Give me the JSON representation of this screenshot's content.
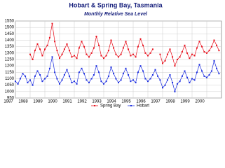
{
  "chart_data": {
    "type": "line",
    "title": "Hobart & Spring Bay, Tasmania",
    "subtitle": "Monthly Relative Sea Level",
    "x": [
      1987.0,
      1987.17,
      1987.33,
      1987.5,
      1987.67,
      1987.83,
      1988.0,
      1988.17,
      1988.33,
      1988.5,
      1988.67,
      1988.83,
      1989.0,
      1989.17,
      1989.33,
      1989.5,
      1989.67,
      1989.83,
      1990.0,
      1990.17,
      1990.33,
      1990.5,
      1990.67,
      1990.83,
      1991.0,
      1991.17,
      1991.33,
      1991.5,
      1991.67,
      1991.83,
      1992.0,
      1992.17,
      1992.33,
      1992.5,
      1992.67,
      1992.83,
      1993.0,
      1993.17,
      1993.33,
      1993.5,
      1993.67,
      1993.83,
      1994.0,
      1994.17,
      1994.33,
      1994.5,
      1994.67,
      1994.83,
      1995.0,
      1995.17,
      1995.33,
      1995.5,
      1995.67,
      1995.83,
      1996.0,
      1996.17,
      1996.33,
      1996.5,
      1996.67,
      1996.83,
      1997.0,
      1997.17,
      1997.33,
      1997.5,
      1997.67,
      1997.83,
      1998.0,
      1998.17,
      1998.33,
      1998.5,
      1998.67,
      1998.83,
      1999.0,
      1999.17,
      1999.33,
      1999.5,
      1999.67,
      1999.83,
      2000.0,
      2000.17,
      2000.33,
      2000.5,
      2000.67,
      2000.83
    ],
    "series": [
      {
        "name": "Spring Bay",
        "color": "#e8101c",
        "values": [
          null,
          null,
          null,
          null,
          null,
          null,
          1290,
          1250,
          1320,
          1370,
          1330,
          1280,
          1330,
          1360,
          1420,
          1530,
          1390,
          1320,
          1260,
          1290,
          1330,
          1370,
          1320,
          1270,
          1280,
          1260,
          1340,
          1390,
          1350,
          1290,
          1270,
          1300,
          1340,
          1430,
          1360,
          1280,
          1260,
          1280,
          1320,
          1400,
          1340,
          1290,
          1270,
          1290,
          1340,
          1390,
          1330,
          1280,
          1290,
          1270,
          1350,
          1410,
          1360,
          1300,
          1280,
          1300,
          1330,
          null,
          null,
          1290,
          1220,
          1240,
          1290,
          1330,
          1270,
          1200,
          1250,
          1270,
          1310,
          1360,
          1300,
          1260,
          1290,
          1280,
          1340,
          1390,
          1350,
          1310,
          1300,
          1320,
          1350,
          1400,
          1360,
          1320
        ]
      },
      {
        "name": "Hobart",
        "color": "#1c2ee0",
        "values": [
          1080,
          1060,
          1100,
          1140,
          1120,
          1070,
          1090,
          1050,
          1120,
          1160,
          1130,
          1080,
          1100,
          1120,
          1180,
          1270,
          1150,
          1100,
          1060,
          1090,
          1130,
          1170,
          1120,
          1070,
          1080,
          1060,
          1150,
          1180,
          1140,
          1090,
          1070,
          1100,
          1130,
          1200,
          1150,
          1080,
          1060,
          1080,
          1120,
          1190,
          1140,
          1100,
          1070,
          1090,
          1140,
          1180,
          1130,
          1080,
          1090,
          1070,
          1150,
          1200,
          1160,
          1100,
          1080,
          1100,
          1130,
          1170,
          1120,
          1090,
          1030,
          1050,
          1090,
          1130,
          1070,
          1000,
          1060,
          1080,
          1120,
          1160,
          1110,
          1070,
          1100,
          1090,
          1150,
          1210,
          1160,
          1120,
          1110,
          1130,
          1160,
          1240,
          1180,
          1140
        ]
      }
    ],
    "xlim": [
      1987,
      2001
    ],
    "xticks": [
      1987,
      1988,
      1989,
      1990,
      1991,
      1992,
      1993,
      1994,
      1995,
      1996,
      1997,
      1998,
      1999,
      2000
    ],
    "ylim": [
      950,
      1550
    ],
    "yticks": [
      950,
      1000,
      1050,
      1100,
      1150,
      1200,
      1250,
      1300,
      1350,
      1400,
      1450,
      1500,
      1550
    ],
    "grid": true
  }
}
